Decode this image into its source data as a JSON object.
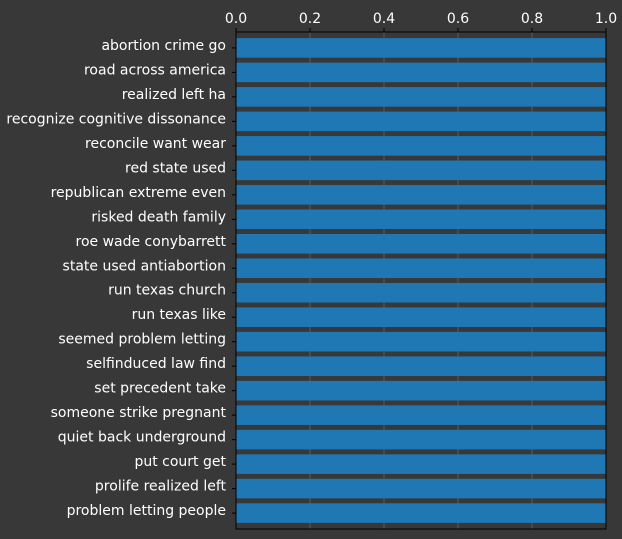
{
  "chart_data": {
    "type": "bar",
    "orientation": "horizontal",
    "categories": [
      "abortion crime go",
      "road across america",
      "realized left ha",
      "recognize cognitive dissonance",
      "reconcile want wear",
      "red state used",
      "republican extreme even",
      "risked death family",
      "roe wade conybarrett",
      "state used antiabortion",
      "run texas church",
      "run texas like",
      "seemed problem letting",
      "selfinduced law find",
      "set precedent take",
      "someone strike pregnant",
      "quiet back underground",
      "put court get",
      "prolife realized left",
      "problem letting people"
    ],
    "values": [
      1.0,
      1.0,
      1.0,
      1.0,
      1.0,
      1.0,
      1.0,
      1.0,
      1.0,
      1.0,
      1.0,
      1.0,
      1.0,
      1.0,
      1.0,
      1.0,
      1.0,
      1.0,
      1.0,
      1.0
    ],
    "xlim": [
      0.0,
      1.0
    ],
    "xticks": [
      "0.0",
      "0.2",
      "0.4",
      "0.6",
      "0.8",
      "1.0"
    ],
    "x_axis_position": "top",
    "grid": true,
    "title": "",
    "xlabel": "",
    "ylabel": "",
    "colors": {
      "bar": "#1f77b4",
      "background": "#383838",
      "text": "#ffffff",
      "grid": "#5a5a5a",
      "axis": "#000000"
    }
  }
}
